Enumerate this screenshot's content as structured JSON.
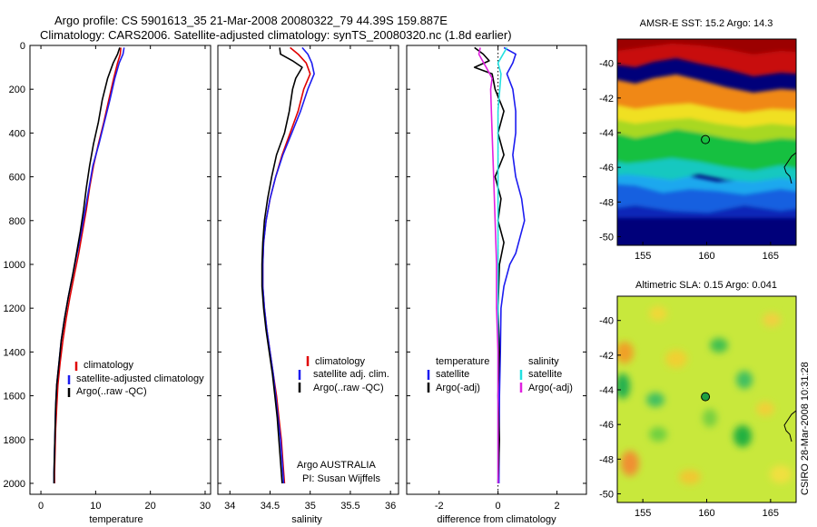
{
  "title_lines": [
    "Argo profile: CS 5901613_35 21-Mar-2008 20080322_79 44.39S 159.887E",
    "Climatology: CARS2006. Satellite-adjusted climatology: synTS_20080320.nc (1.8d earlier)"
  ],
  "side_label": "CSIRO 28-Mar-2008 10:31:28",
  "colors": {
    "red": "#e00000",
    "blue": "#1c1cf0",
    "black": "#000000",
    "cyan": "#22e0e0",
    "magenta": "#e020e0"
  },
  "chart_data": [
    {
      "type": "line",
      "id": "temperature",
      "xlabel": "temperature",
      "xlim": [
        -2,
        31
      ],
      "ylim": [
        0,
        2050
      ],
      "y_reversed": true,
      "xticks": [
        0,
        10,
        20,
        30
      ],
      "yticks": [
        0,
        200,
        400,
        600,
        800,
        1000,
        1200,
        1400,
        1600,
        1800,
        2000
      ],
      "legend": [
        "climatology",
        "satellite-adjusted climatology",
        "Argo(..raw -QC)"
      ],
      "series": [
        {
          "name": "climatology",
          "color": "red",
          "points": [
            [
              14.6,
              10
            ],
            [
              14.5,
              40
            ],
            [
              14.0,
              80
            ],
            [
              13.3,
              150
            ],
            [
              12.4,
              250
            ],
            [
              11.5,
              350
            ],
            [
              10.5,
              450
            ],
            [
              9.6,
              550
            ],
            [
              8.9,
              650
            ],
            [
              8.3,
              750
            ],
            [
              7.6,
              850
            ],
            [
              6.9,
              950
            ],
            [
              6.1,
              1050
            ],
            [
              5.3,
              1150
            ],
            [
              4.6,
              1250
            ],
            [
              4.0,
              1350
            ],
            [
              3.5,
              1450
            ],
            [
              3.1,
              1550
            ],
            [
              2.9,
              1650
            ],
            [
              2.7,
              1750
            ],
            [
              2.6,
              1850
            ],
            [
              2.5,
              1950
            ],
            [
              2.5,
              2000
            ]
          ]
        },
        {
          "name": "satellite-adjusted climatology",
          "color": "blue",
          "points": [
            [
              15.2,
              10
            ],
            [
              15.0,
              40
            ],
            [
              14.3,
              80
            ],
            [
              13.5,
              150
            ],
            [
              12.6,
              250
            ],
            [
              11.6,
              350
            ],
            [
              10.6,
              450
            ],
            [
              9.5,
              550
            ],
            [
              8.8,
              650
            ],
            [
              8.1,
              750
            ],
            [
              7.4,
              850
            ],
            [
              6.6,
              950
            ],
            [
              5.8,
              1050
            ],
            [
              5.0,
              1150
            ],
            [
              4.3,
              1250
            ],
            [
              3.7,
              1350
            ],
            [
              3.3,
              1450
            ],
            [
              2.9,
              1550
            ],
            [
              2.7,
              1650
            ],
            [
              2.6,
              1750
            ],
            [
              2.5,
              1850
            ],
            [
              2.4,
              1950
            ],
            [
              2.4,
              2000
            ]
          ]
        },
        {
          "name": "Argo(..raw -QC)",
          "color": "black",
          "points": [
            [
              14.4,
              10
            ],
            [
              14.0,
              40
            ],
            [
              13.2,
              80
            ],
            [
              12.2,
              150
            ],
            [
              11.2,
              250
            ],
            [
              10.5,
              350
            ],
            [
              9.6,
              450
            ],
            [
              8.9,
              550
            ],
            [
              8.3,
              650
            ],
            [
              7.8,
              750
            ],
            [
              7.2,
              850
            ],
            [
              6.5,
              950
            ],
            [
              5.8,
              1050
            ],
            [
              5.0,
              1150
            ],
            [
              4.3,
              1250
            ],
            [
              3.7,
              1350
            ],
            [
              3.3,
              1450
            ],
            [
              2.9,
              1550
            ],
            [
              2.7,
              1650
            ],
            [
              2.6,
              1750
            ],
            [
              2.5,
              1850
            ],
            [
              2.4,
              1950
            ],
            [
              2.4,
              2000
            ]
          ]
        }
      ]
    },
    {
      "type": "line",
      "id": "salinity",
      "xlabel": "salinity",
      "xlim": [
        33.85,
        36.1
      ],
      "ylim": [
        0,
        2050
      ],
      "y_reversed": true,
      "xticks": [
        34,
        34.5,
        35,
        35.5,
        36
      ],
      "legend": [
        "climatology",
        "satellite adj. clim.",
        "Argo(..raw -QC)"
      ],
      "annotation": [
        "Argo AUSTRALIA",
        "PI: Susan Wijffels"
      ],
      "series": [
        {
          "name": "climatology",
          "color": "red",
          "points": [
            [
              34.75,
              10
            ],
            [
              34.85,
              40
            ],
            [
              34.95,
              80
            ],
            [
              35.0,
              130
            ],
            [
              34.92,
              200
            ],
            [
              34.85,
              300
            ],
            [
              34.75,
              400
            ],
            [
              34.65,
              500
            ],
            [
              34.57,
              600
            ],
            [
              34.5,
              700
            ],
            [
              34.45,
              800
            ],
            [
              34.42,
              900
            ],
            [
              34.41,
              1000
            ],
            [
              34.41,
              1100
            ],
            [
              34.43,
              1200
            ],
            [
              34.46,
              1300
            ],
            [
              34.5,
              1400
            ],
            [
              34.54,
              1500
            ],
            [
              34.58,
              1600
            ],
            [
              34.61,
              1700
            ],
            [
              34.64,
              1800
            ],
            [
              34.66,
              1900
            ],
            [
              34.68,
              2000
            ]
          ]
        },
        {
          "name": "satellite adj. clim.",
          "color": "blue",
          "points": [
            [
              34.9,
              10
            ],
            [
              34.97,
              40
            ],
            [
              35.02,
              80
            ],
            [
              35.05,
              130
            ],
            [
              34.97,
              200
            ],
            [
              34.88,
              300
            ],
            [
              34.77,
              400
            ],
            [
              34.66,
              500
            ],
            [
              34.57,
              600
            ],
            [
              34.5,
              700
            ],
            [
              34.45,
              800
            ],
            [
              34.42,
              900
            ],
            [
              34.41,
              1000
            ],
            [
              34.41,
              1100
            ],
            [
              34.43,
              1200
            ],
            [
              34.46,
              1300
            ],
            [
              34.5,
              1400
            ],
            [
              34.54,
              1500
            ],
            [
              34.57,
              1600
            ],
            [
              34.6,
              1700
            ],
            [
              34.63,
              1800
            ],
            [
              34.65,
              1900
            ],
            [
              34.67,
              2000
            ]
          ]
        },
        {
          "name": "Argo(..raw -QC)",
          "color": "black",
          "points": [
            [
              34.62,
              10
            ],
            [
              34.63,
              40
            ],
            [
              34.78,
              70
            ],
            [
              34.9,
              100
            ],
            [
              34.82,
              150
            ],
            [
              34.78,
              200
            ],
            [
              34.74,
              300
            ],
            [
              34.68,
              400
            ],
            [
              34.58,
              500
            ],
            [
              34.52,
              600
            ],
            [
              34.47,
              700
            ],
            [
              34.43,
              800
            ],
            [
              34.41,
              900
            ],
            [
              34.4,
              1000
            ],
            [
              34.4,
              1100
            ],
            [
              34.42,
              1200
            ],
            [
              34.45,
              1300
            ],
            [
              34.49,
              1400
            ],
            [
              34.53,
              1500
            ],
            [
              34.56,
              1600
            ],
            [
              34.59,
              1700
            ],
            [
              34.61,
              1800
            ],
            [
              34.63,
              1900
            ],
            [
              34.65,
              2000
            ]
          ]
        }
      ]
    },
    {
      "type": "line",
      "id": "difference",
      "xlabel": "difference from climatology",
      "xlim": [
        -3.1,
        3.0
      ],
      "ylim": [
        0,
        2050
      ],
      "y_reversed": true,
      "xticks": [
        -2,
        0,
        2
      ],
      "legend_left": [
        "temperature",
        "satellite",
        "Argo(-adj)"
      ],
      "legend_right": [
        "salinity",
        "satellite",
        "Argo(-adj)"
      ],
      "series": [
        {
          "name": "temperature satellite",
          "color": "blue",
          "points": [
            [
              0.2,
              10
            ],
            [
              0.6,
              40
            ],
            [
              0.5,
              80
            ],
            [
              0.3,
              130
            ],
            [
              0.5,
              200
            ],
            [
              0.6,
              300
            ],
            [
              0.6,
              400
            ],
            [
              0.5,
              500
            ],
            [
              0.6,
              600
            ],
            [
              0.8,
              700
            ],
            [
              0.9,
              800
            ],
            [
              0.7,
              900
            ],
            [
              0.6,
              950
            ],
            [
              0.4,
              1000
            ],
            [
              0.2,
              1100
            ],
            [
              0.1,
              1200
            ],
            [
              0.08,
              1400
            ],
            [
              0.05,
              1600
            ],
            [
              0.04,
              1800
            ],
            [
              0.03,
              2000
            ]
          ]
        },
        {
          "name": "temperature Argo(-adj)",
          "color": "black",
          "points": [
            [
              -0.8,
              10
            ],
            [
              -0.5,
              40
            ],
            [
              -0.3,
              70
            ],
            [
              -0.8,
              100
            ],
            [
              -0.2,
              130
            ],
            [
              -0.1,
              200
            ],
            [
              0.2,
              300
            ],
            [
              0.0,
              400
            ],
            [
              0.2,
              500
            ],
            [
              -0.1,
              600
            ],
            [
              0.1,
              700
            ],
            [
              0.0,
              800
            ],
            [
              0.2,
              900
            ],
            [
              0.05,
              1000
            ],
            [
              0.0,
              1200
            ],
            [
              0.05,
              1400
            ],
            [
              0.0,
              1600
            ],
            [
              0.05,
              1800
            ],
            [
              0.0,
              2000
            ]
          ]
        },
        {
          "name": "salinity satellite",
          "color": "cyan",
          "points": [
            [
              0.3,
              10
            ],
            [
              0.0,
              80
            ],
            [
              0.1,
              130
            ],
            [
              0.0,
              300
            ],
            [
              0.0,
              600
            ],
            [
              0.0,
              1000
            ],
            [
              0.0,
              1500
            ],
            [
              0.0,
              2000
            ]
          ]
        },
        {
          "name": "salinity Argo(-adj)",
          "color": "magenta",
          "points": [
            [
              -0.6,
              10
            ],
            [
              -0.65,
              40
            ],
            [
              -0.4,
              100
            ],
            [
              -0.2,
              150
            ],
            [
              -0.25,
              200
            ],
            [
              -0.2,
              400
            ],
            [
              -0.15,
              600
            ],
            [
              -0.1,
              800
            ],
            [
              -0.05,
              1000
            ],
            [
              -0.05,
              1200
            ],
            [
              0.0,
              1400
            ],
            [
              0.0,
              2000
            ]
          ]
        }
      ]
    },
    {
      "type": "heatmap",
      "id": "sst",
      "title": "AMSR-E SST: 15.2 Argo: 14.3",
      "xlim": [
        153,
        167
      ],
      "ylim": [
        -50.5,
        -38.6
      ],
      "xticks": [
        155,
        160,
        165
      ],
      "yticks": [
        -40,
        -42,
        -44,
        -46,
        -48,
        -50
      ],
      "marker": {
        "lon": 159.9,
        "lat": -44.4
      }
    },
    {
      "type": "heatmap",
      "id": "sla",
      "title": "Altimetric SLA: 0.15 Argo: 0.041",
      "xlim": [
        153,
        167
      ],
      "ylim": [
        -50.5,
        -38.6
      ],
      "xticks": [
        155,
        160,
        165
      ],
      "yticks": [
        -40,
        -42,
        -44,
        -46,
        -48,
        -50
      ],
      "marker": {
        "lon": 159.9,
        "lat": -44.4
      }
    }
  ]
}
